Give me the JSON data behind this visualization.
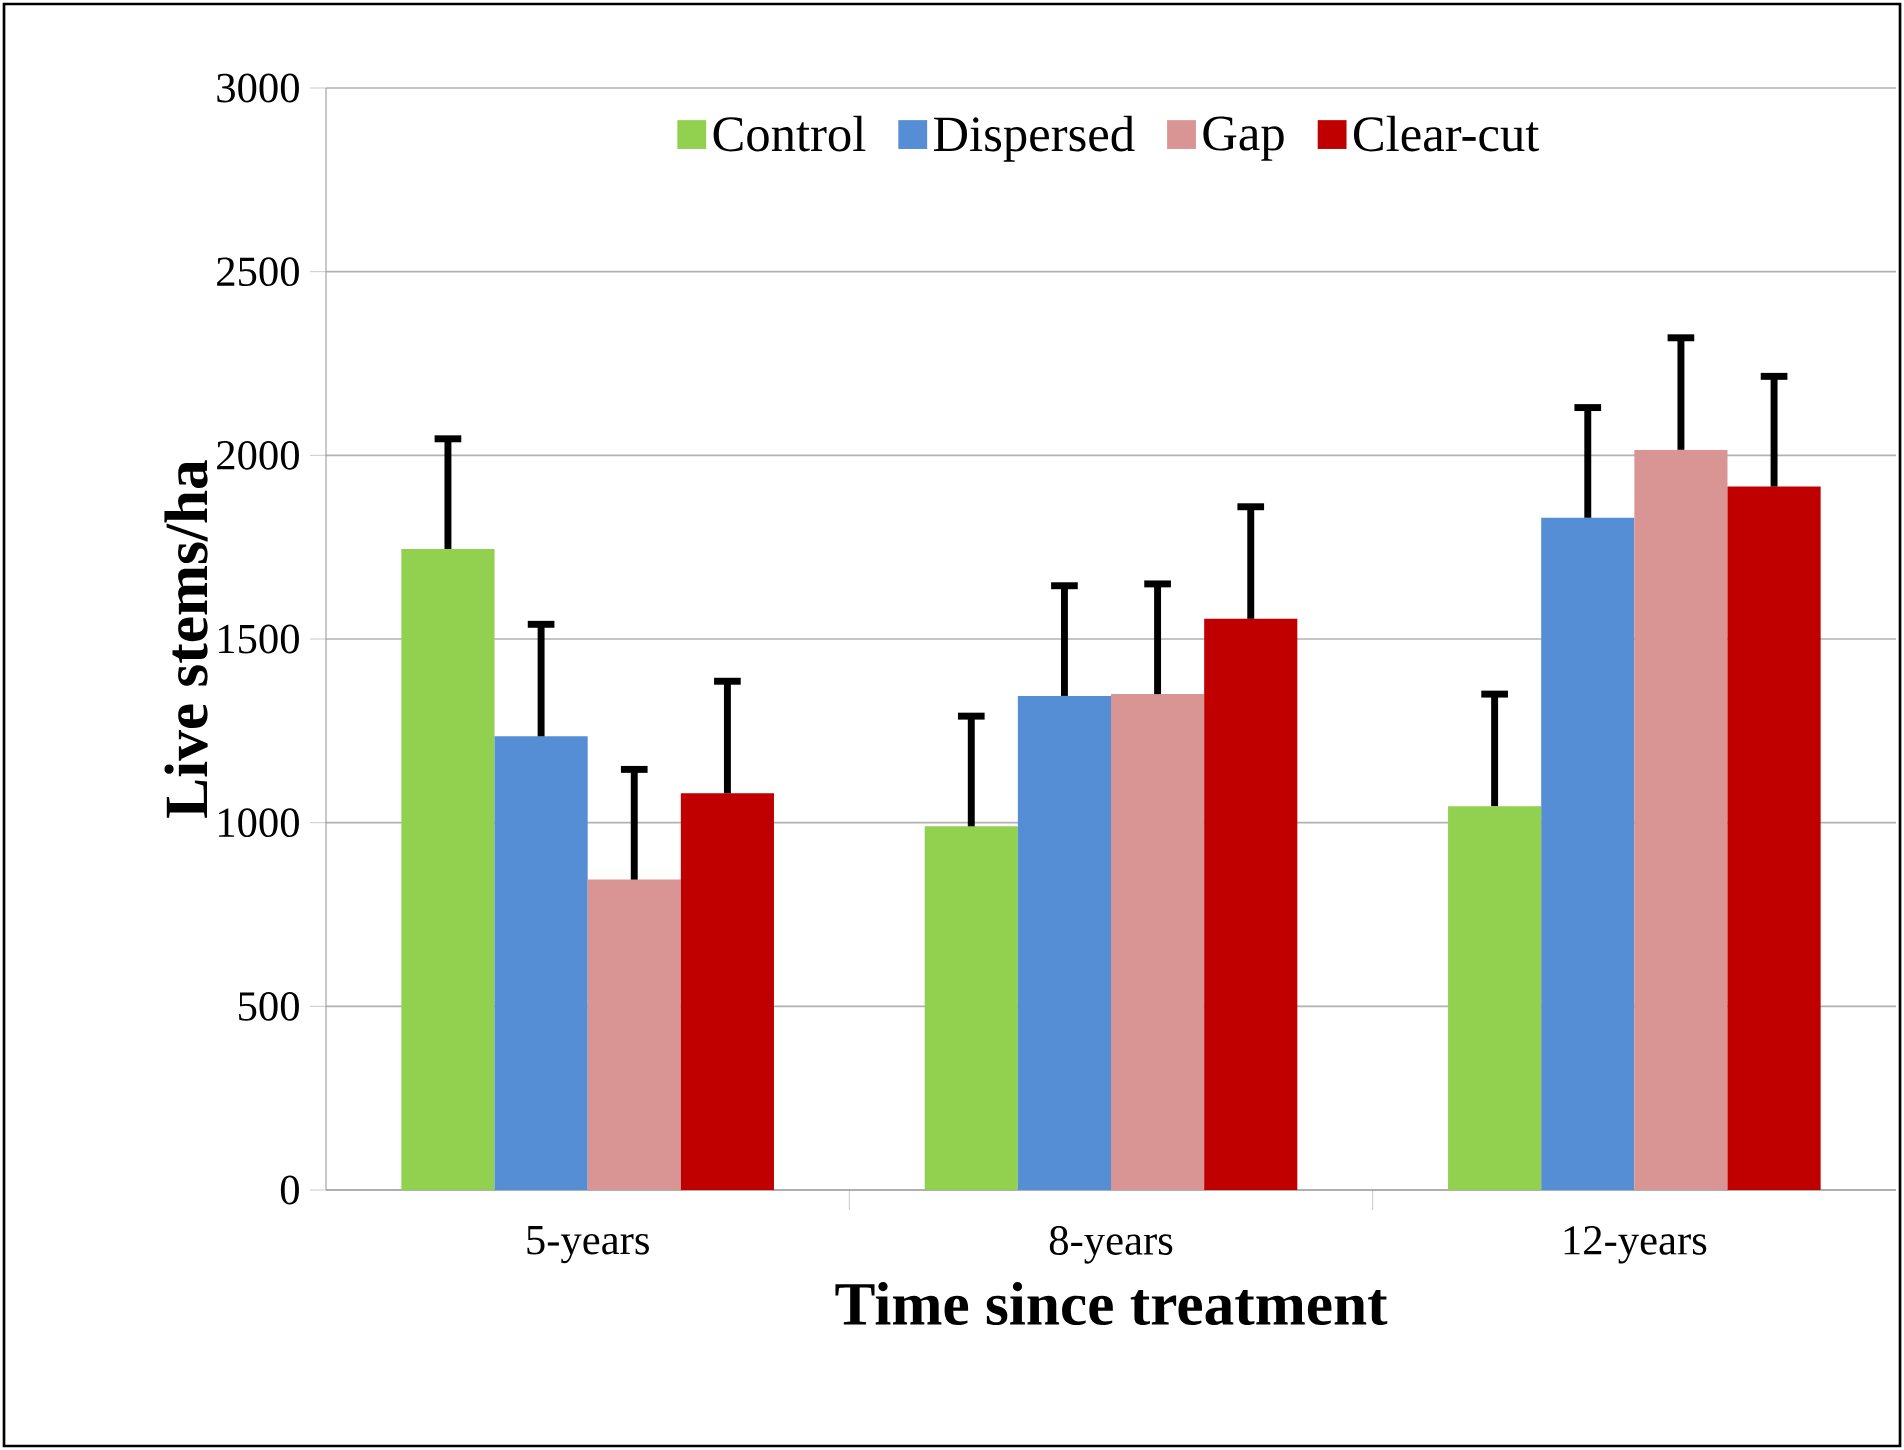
{
  "chart_data": {
    "type": "bar",
    "xlabel": "Time since treatment",
    "ylabel": "Live stems/ha",
    "categories": [
      "5-years",
      "8-years",
      "12-years"
    ],
    "series": [
      {
        "name": "Control",
        "color": "#92d050",
        "values": [
          1745,
          990,
          1045
        ],
        "errors": [
          [
            1745,
            2045
          ],
          [
            990,
            1290
          ],
          [
            1045,
            1350
          ]
        ]
      },
      {
        "name": "Dispersed",
        "color": "#558ed5",
        "values": [
          1235,
          1345,
          1830
        ],
        "errors": [
          [
            1235,
            1540
          ],
          [
            1345,
            1645
          ],
          [
            1830,
            2130
          ]
        ]
      },
      {
        "name": "Gap",
        "color": "#d99594",
        "values": [
          845,
          1350,
          2015
        ],
        "errors": [
          [
            845,
            1145
          ],
          [
            1350,
            1650
          ],
          [
            2015,
            2320
          ]
        ]
      },
      {
        "name": "Clear-cut",
        "color": "#c00000",
        "values": [
          1080,
          1555,
          1915
        ],
        "errors": [
          [
            1080,
            1385
          ],
          [
            1555,
            1860
          ],
          [
            1915,
            2215
          ]
        ]
      }
    ],
    "ylim": [
      0,
      3000
    ],
    "yticks": [
      0,
      500,
      1000,
      1500,
      2000,
      2500,
      3000
    ],
    "grid": "y",
    "legend": "top"
  }
}
